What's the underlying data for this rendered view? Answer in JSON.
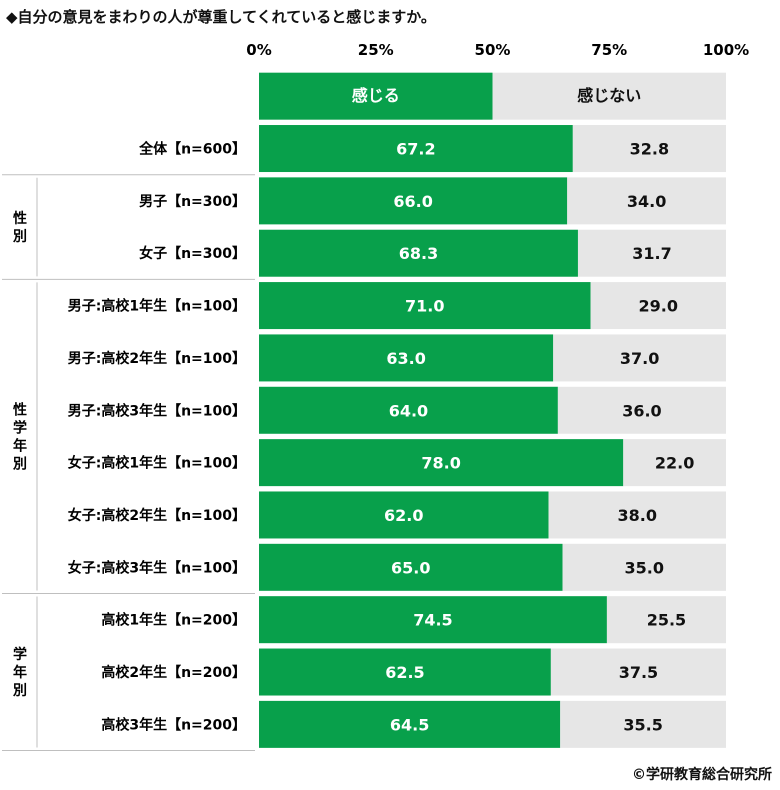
{
  "title": "◆自分の意見をまわりの人が尊重してくれていると感じますか。",
  "credit": "©学研教育総合研究所",
  "colors": {
    "yes": "#08a04b",
    "no": "#e6e6e6",
    "separator": "#bfbfbf"
  },
  "chart_data": {
    "type": "bar",
    "orientation": "horizontal",
    "stacked": "percent",
    "xlim": [
      0,
      100
    ],
    "xticks": [
      "0%",
      "25%",
      "50%",
      "75%",
      "100%"
    ],
    "legend": {
      "position": "top",
      "labels": [
        "感じる",
        "感じない"
      ]
    },
    "groups": [
      {
        "label": "",
        "rows": 1
      },
      {
        "label": "性別",
        "rows": 2
      },
      {
        "label": "性学年別",
        "rows": 6
      },
      {
        "label": "学年別",
        "rows": 3
      }
    ],
    "categories": [
      "全体【n=600】",
      "男子【n=300】",
      "女子【n=300】",
      "男子:高校1年生【n=100】",
      "男子:高校2年生【n=100】",
      "男子:高校3年生【n=100】",
      "女子:高校1年生【n=100】",
      "女子:高校2年生【n=100】",
      "女子:高校3年生【n=100】",
      "高校1年生【n=200】",
      "高校2年生【n=200】",
      "高校3年生【n=200】"
    ],
    "series": [
      {
        "name": "感じる",
        "values": [
          67.2,
          66.0,
          68.3,
          71.0,
          63.0,
          64.0,
          78.0,
          62.0,
          65.0,
          74.5,
          62.5,
          64.5
        ]
      },
      {
        "name": "感じない",
        "values": [
          32.8,
          34.0,
          31.7,
          29.0,
          37.0,
          36.0,
          22.0,
          38.0,
          35.0,
          25.5,
          37.5,
          35.5
        ]
      }
    ]
  }
}
